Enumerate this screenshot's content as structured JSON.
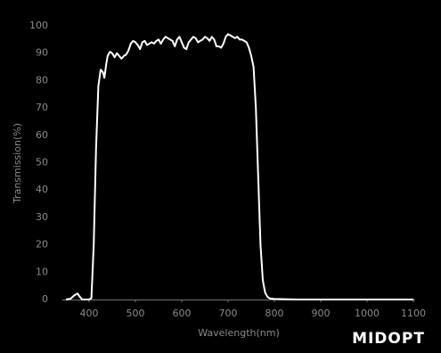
{
  "chart_data": {
    "type": "line",
    "x_label": "Wavelength(nm)",
    "y_label": "Transmission(%)",
    "logo": "MIDOPT",
    "xlim": [
      350,
      1100
    ],
    "ylim": [
      0,
      100
    ],
    "xticks": [
      400,
      500,
      600,
      700,
      800,
      900,
      1000,
      1100
    ],
    "yticks": [
      0,
      10,
      20,
      30,
      40,
      50,
      60,
      70,
      80,
      90,
      100
    ],
    "grid": false,
    "series": [
      {
        "name": "Transmission",
        "color": "#ffffff",
        "x": [
          350,
          360,
          368,
          375,
          380,
          385,
          400,
          405,
          410,
          415,
          420,
          425,
          430,
          433,
          437,
          440,
          445,
          450,
          455,
          460,
          465,
          470,
          475,
          480,
          485,
          490,
          495,
          500,
          505,
          510,
          515,
          520,
          525,
          530,
          535,
          540,
          545,
          550,
          555,
          560,
          565,
          570,
          575,
          580,
          585,
          590,
          595,
          600,
          605,
          610,
          615,
          620,
          625,
          630,
          635,
          640,
          645,
          650,
          655,
          660,
          665,
          670,
          675,
          680,
          685,
          690,
          695,
          700,
          705,
          710,
          715,
          720,
          725,
          730,
          735,
          740,
          745,
          750,
          755,
          760,
          765,
          770,
          775,
          780,
          785,
          790,
          800,
          850,
          900,
          1000,
          1100
        ],
        "values": [
          0,
          0.3,
          1.5,
          2.2,
          1,
          0,
          0,
          0.5,
          20,
          55,
          78,
          84,
          83,
          81,
          86,
          89,
          90.5,
          90,
          88.5,
          90,
          89,
          88,
          89,
          89.5,
          91,
          93.5,
          94.5,
          94,
          93,
          91.5,
          94,
          94.5,
          93,
          93.5,
          94,
          93.5,
          94.5,
          95,
          93.5,
          95,
          96,
          95.5,
          95,
          94.5,
          92.5,
          95,
          96,
          94,
          92,
          91.5,
          94,
          95,
          96,
          95.5,
          94,
          94.5,
          95,
          96,
          95.5,
          94.5,
          96,
          95,
          92.5,
          92.5,
          92,
          93.5,
          96,
          97,
          96.5,
          96,
          95.5,
          96,
          95,
          95,
          94.5,
          94,
          92,
          89,
          85,
          70,
          45,
          20,
          7,
          2.5,
          1,
          0.4,
          0.2,
          0,
          0,
          0,
          0
        ]
      }
    ]
  }
}
